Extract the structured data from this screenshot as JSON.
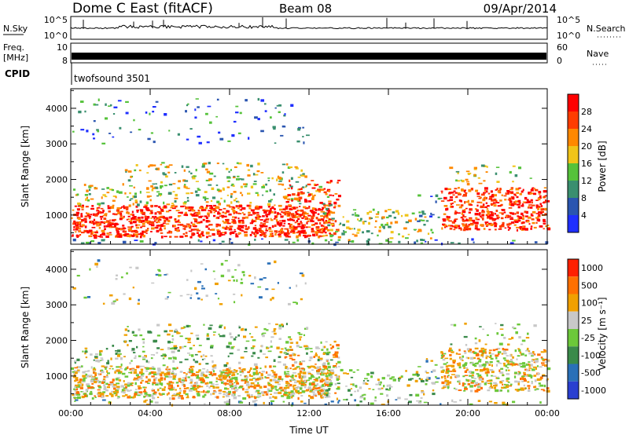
{
  "header": {
    "station": "Dome C East (fitACF)",
    "beam": "Beam 08",
    "date": "09/Apr/2014"
  },
  "strips": {
    "nsky_label": "N.Sky",
    "nsearch_label": "N.Search",
    "nsky_ticks": [
      "10^5",
      "10^0"
    ],
    "freq_label": "Freq.",
    "freq_unit": "[MHz]",
    "freq_ticks": [
      "10",
      "8"
    ],
    "nave_label": "Nave",
    "nave_ticks": [
      "60",
      "0"
    ],
    "cpid_label": "CPID",
    "cpid_value": "twofsound 3501"
  },
  "colors": {
    "power": [
      "#1f2fff",
      "#2a55b0",
      "#3a8f6f",
      "#55c23a",
      "#f0c419",
      "#ff8800",
      "#ff3c00",
      "#ff0000"
    ],
    "velocity": [
      "#2a3fd0",
      "#2a70b8",
      "#3a8a4a",
      "#6cc83a",
      "#c8c8c8",
      "#f0a000",
      "#ff7000",
      "#ff2000"
    ]
  },
  "chart_data": [
    {
      "type": "heatmap",
      "title": "",
      "xlabel": "",
      "ylabel": "Slant Range [km]",
      "xlim": [
        0,
        24
      ],
      "ylim": [
        180,
        4550
      ],
      "x_ticks": [
        "00:00",
        "04:00",
        "08:00",
        "12:00",
        "16:00",
        "20:00",
        "00:00"
      ],
      "y_ticks": [
        1000,
        2000,
        3000,
        4000
      ],
      "colorbar": {
        "label": "Power [dB]",
        "ticks": [
          "4",
          "8",
          "12",
          "16",
          "20",
          "24",
          "28"
        ]
      }
    },
    {
      "type": "heatmap",
      "title": "",
      "xlabel": "Time UT",
      "ylabel": "Slant Range [km]",
      "xlim": [
        0,
        24
      ],
      "ylim": [
        180,
        4550
      ],
      "x_ticks": [
        "00:00",
        "04:00",
        "08:00",
        "12:00",
        "16:00",
        "20:00",
        "00:00"
      ],
      "y_ticks": [
        1000,
        2000,
        3000,
        4000
      ],
      "colorbar": {
        "label": "Velocity [m s⁻¹]",
        "ticks": [
          "1000",
          "500",
          "100",
          "25",
          "-25",
          "-100",
          "-500",
          "-1000"
        ]
      }
    }
  ]
}
